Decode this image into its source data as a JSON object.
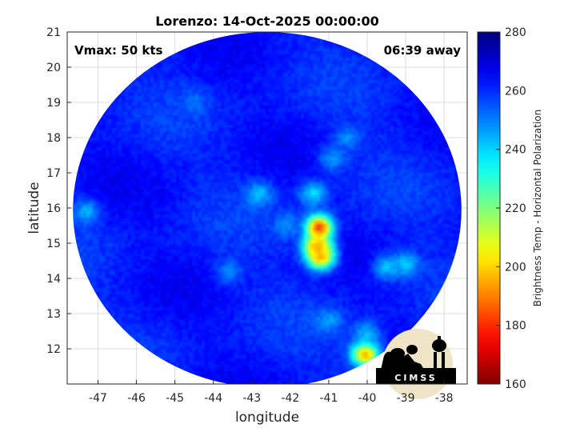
{
  "title": "Lorenzo: 14-Oct-2025 00:00:00",
  "annotations": {
    "vmax": "Vmax: 50 kts",
    "time_away": "06:39 away"
  },
  "axes": {
    "xlabel": "longitude",
    "ylabel": "latitude"
  },
  "colorbar": {
    "label": "Brightness Temp - Horizontal Polarization"
  },
  "logo": {
    "text": "CIMSS"
  },
  "chart_data": {
    "type": "heatmap",
    "xlim": [
      -47.8,
      -37.4
    ],
    "ylim": [
      11.0,
      21.0
    ],
    "x_ticks": [
      -47,
      -46,
      -45,
      -44,
      -43,
      -42,
      -41,
      -40,
      -39,
      -38
    ],
    "y_ticks": [
      12,
      13,
      14,
      15,
      16,
      17,
      18,
      19,
      20,
      21
    ],
    "colorbar_range": [
      160,
      280
    ],
    "colorbar_ticks": [
      160,
      180,
      200,
      220,
      240,
      260,
      280
    ],
    "colormap": "jet",
    "grid": true,
    "swath": {
      "center": [
        -42.6,
        15.95
      ],
      "radius_lon": 5.05,
      "radius_lat": 5.05
    },
    "background_temp": 262,
    "features": [
      {
        "lon": -41.25,
        "lat": 15.45,
        "temp": 178
      },
      {
        "lon": -41.3,
        "lat": 14.9,
        "temp": 190
      },
      {
        "lon": -41.2,
        "lat": 14.6,
        "temp": 195
      },
      {
        "lon": -40.05,
        "lat": 11.85,
        "temp": 190
      },
      {
        "lon": -41.4,
        "lat": 16.4,
        "temp": 238
      },
      {
        "lon": -42.1,
        "lat": 15.5,
        "temp": 248
      },
      {
        "lon": -39.5,
        "lat": 14.3,
        "temp": 242
      },
      {
        "lon": -39.0,
        "lat": 14.4,
        "temp": 240
      },
      {
        "lon": -42.8,
        "lat": 16.4,
        "temp": 242
      },
      {
        "lon": -40.9,
        "lat": 17.4,
        "temp": 246
      },
      {
        "lon": -40.5,
        "lat": 18.0,
        "temp": 248
      },
      {
        "lon": -41.0,
        "lat": 12.8,
        "temp": 246
      },
      {
        "lon": -40.0,
        "lat": 12.4,
        "temp": 242
      },
      {
        "lon": -47.3,
        "lat": 15.9,
        "temp": 244
      },
      {
        "lon": -43.6,
        "lat": 14.2,
        "temp": 250
      },
      {
        "lon": -44.5,
        "lat": 19.0,
        "temp": 252
      },
      {
        "lon": -45.5,
        "lat": 16.2,
        "temp": 266
      }
    ],
    "colors": {
      "cold_core": "#8b0000",
      "warm_background": "#0a3fd8"
    }
  }
}
